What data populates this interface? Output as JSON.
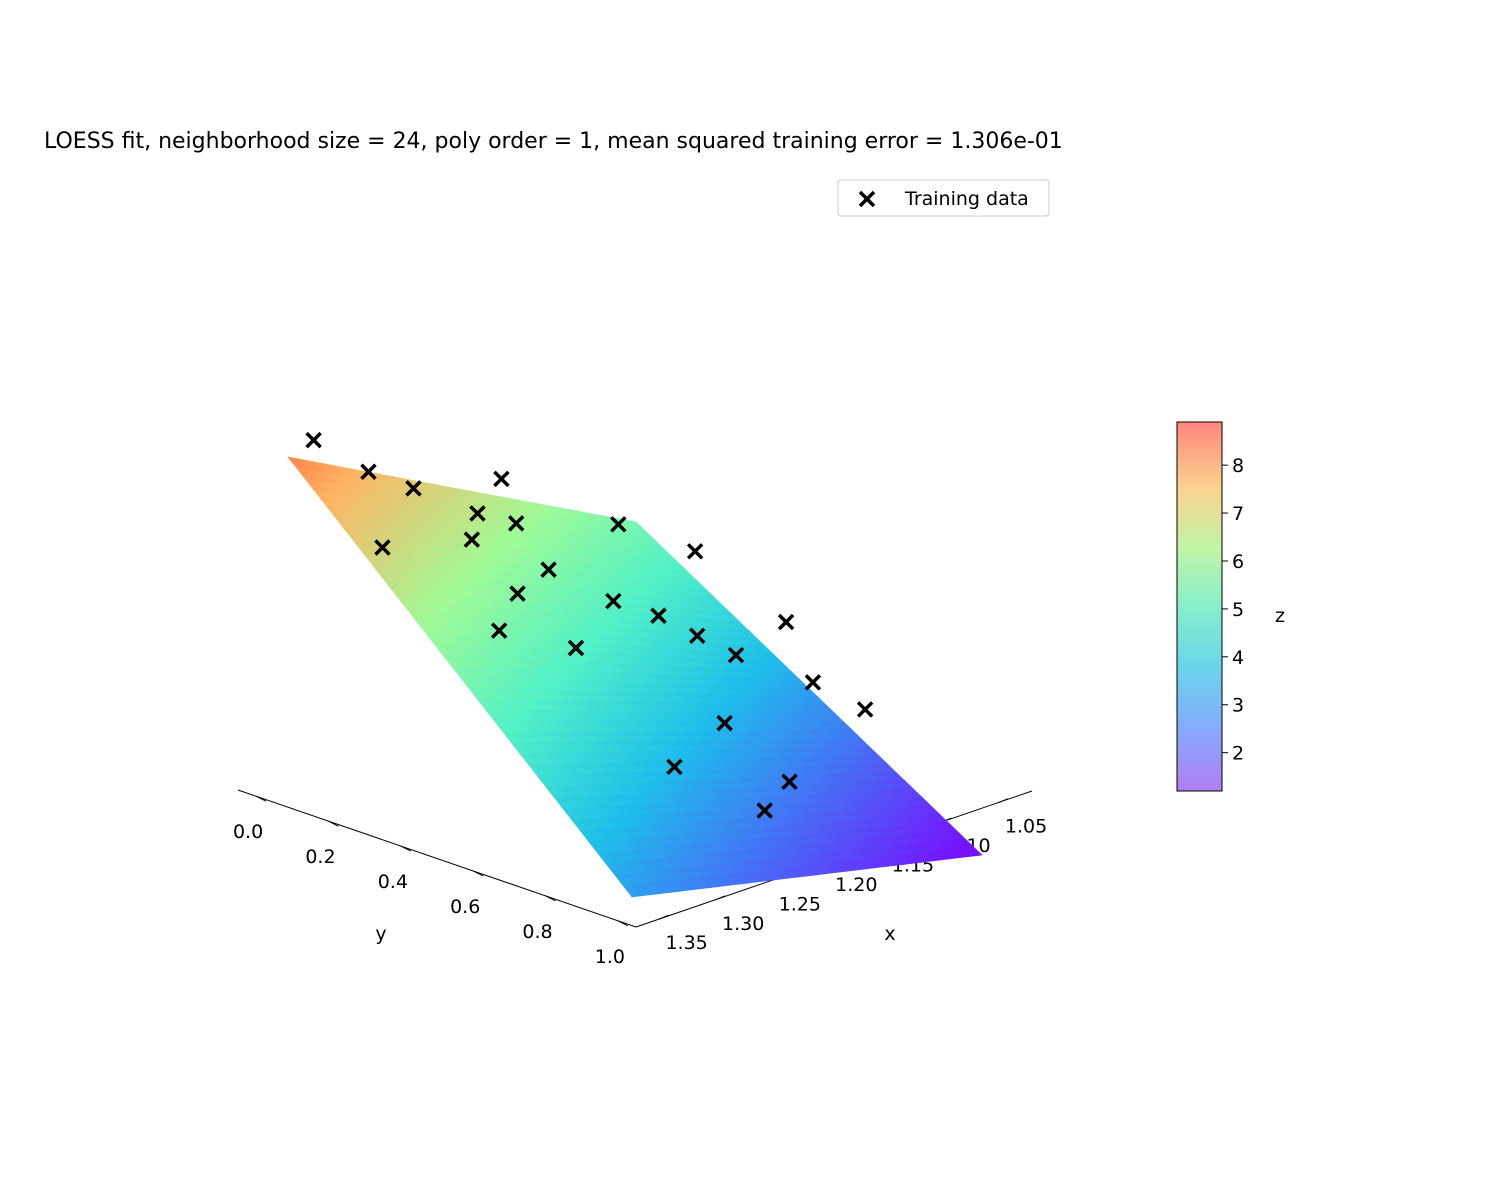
{
  "chart_data": {
    "type": "surface3d",
    "title": "LOESS fit, neighborhood size = 24, poly order = 1, mean squared training error = 1.306e-01",
    "xlabel": "x",
    "ylabel": "y",
    "zlabel": "z",
    "x_ticks": [
      "1.05",
      "1.10",
      "1.15",
      "1.20",
      "1.25",
      "1.30",
      "1.35"
    ],
    "x_tick_values": [
      1.05,
      1.1,
      1.15,
      1.2,
      1.25,
      1.3,
      1.35
    ],
    "y_ticks": [
      "0.0",
      "0.2",
      "0.4",
      "0.6",
      "0.8",
      "1.0"
    ],
    "y_tick_values": [
      0.0,
      0.2,
      0.4,
      0.6,
      0.8,
      1.0
    ],
    "xlim": [
      1.02,
      1.37
    ],
    "ylim": [
      -0.05,
      1.05
    ],
    "colorbar": {
      "label": "z",
      "ticks": [
        "2",
        "3",
        "4",
        "5",
        "6",
        "7",
        "8"
      ],
      "tick_values": [
        2,
        3,
        4,
        5,
        6,
        7,
        8
      ],
      "range": [
        1.2,
        8.9
      ],
      "colormap": "rainbow"
    },
    "legend": {
      "entries": [
        "Training data"
      ],
      "location": "upper-right",
      "marker": "x"
    },
    "surface_corners": {
      "x_min_y_min_z": 8.0,
      "x_min_y_max_z": 5.6,
      "x_max_y_min_z": 3.4,
      "x_max_y_max_z": 1.3
    },
    "series": [
      {
        "name": "Training data",
        "marker": "x",
        "points": [
          {
            "x": 1.03,
            "y": 0.0,
            "z": 9.0
          },
          {
            "x": 1.06,
            "y": 0.08,
            "z": 8.8
          },
          {
            "x": 1.08,
            "y": 0.16,
            "z": 8.8
          },
          {
            "x": 1.1,
            "y": 0.0,
            "z": 7.3
          },
          {
            "x": 1.1,
            "y": 0.3,
            "z": 8.4
          },
          {
            "x": 1.12,
            "y": 0.36,
            "z": 8.6
          },
          {
            "x": 1.14,
            "y": 0.4,
            "z": 7.4
          },
          {
            "x": 1.12,
            "y": 0.22,
            "z": 8.1
          },
          {
            "x": 1.16,
            "y": 0.24,
            "z": 7.3
          },
          {
            "x": 1.18,
            "y": 0.48,
            "z": 7.3
          },
          {
            "x": 1.2,
            "y": 0.56,
            "z": 7.2
          },
          {
            "x": 1.22,
            "y": 0.62,
            "z": 6.9
          },
          {
            "x": 1.2,
            "y": 0.3,
            "z": 6.4
          },
          {
            "x": 1.24,
            "y": 0.68,
            "z": 6.6
          },
          {
            "x": 1.28,
            "y": 0.52,
            "z": 5.5
          },
          {
            "x": 1.3,
            "y": 0.3,
            "z": 5.0
          },
          {
            "x": 1.32,
            "y": 0.6,
            "z": 4.2
          },
          {
            "x": 1.34,
            "y": 0.46,
            "z": 4.1
          },
          {
            "x": 1.26,
            "y": 0.86,
            "z": 5.7
          },
          {
            "x": 1.18,
            "y": 0.12,
            "z": 6.7
          },
          {
            "x": 1.14,
            "y": 0.62,
            "z": 8.9
          },
          {
            "x": 1.22,
            "y": 0.9,
            "z": 6.9
          },
          {
            "x": 1.3,
            "y": 0.9,
            "z": 5.6
          },
          {
            "x": 1.06,
            "y": 0.5,
            "z": 8.4
          },
          {
            "x": 1.16,
            "y": 0.8,
            "z": 8.2
          }
        ]
      }
    ]
  }
}
